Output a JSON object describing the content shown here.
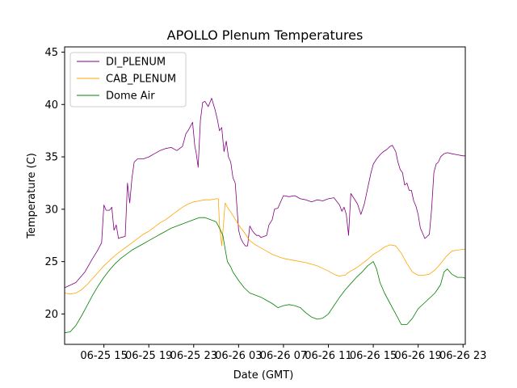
{
  "chart_data": {
    "type": "line",
    "title": "APOLLO Plenum Temperatures",
    "xlabel": "Date (GMT)",
    "ylabel": "Temperature (C)",
    "xlim": [
      11.5,
      47.2
    ],
    "ylim": [
      17.1,
      45.5
    ],
    "x_ticks": [
      {
        "value": 15,
        "label": "06-25 15"
      },
      {
        "value": 19,
        "label": "06-25 19"
      },
      {
        "value": 23,
        "label": "06-25 23"
      },
      {
        "value": 27,
        "label": "06-26 03"
      },
      {
        "value": 31,
        "label": "06-26 07"
      },
      {
        "value": 35,
        "label": "06-26 11"
      },
      {
        "value": 39,
        "label": "06-26 15"
      },
      {
        "value": 43,
        "label": "06-26 19"
      },
      {
        "value": 47,
        "label": "06-26 23"
      }
    ],
    "y_ticks": [
      {
        "value": 20,
        "label": "20"
      },
      {
        "value": 25,
        "label": "25"
      },
      {
        "value": 30,
        "label": "30"
      },
      {
        "value": 35,
        "label": "35"
      },
      {
        "value": 40,
        "label": "40"
      },
      {
        "value": 45,
        "label": "45"
      }
    ],
    "legend": "top-left",
    "series": [
      {
        "name": "DI_PLENUM",
        "color": "#800080",
        "x": [
          11.5,
          12.5,
          13.3,
          14.0,
          14.4,
          14.8,
          15.0,
          15.2,
          15.5,
          15.7,
          15.9,
          16.1,
          16.3,
          16.5,
          16.9,
          17.1,
          17.3,
          17.5,
          17.7,
          18.0,
          18.5,
          19.0,
          19.5,
          20.0,
          20.5,
          21.0,
          21.5,
          22.0,
          22.3,
          22.5,
          22.9,
          23.1,
          23.2,
          23.4,
          23.6,
          23.8,
          24.0,
          24.3,
          24.6,
          24.9,
          25.1,
          25.3,
          25.5,
          25.7,
          25.9,
          26.1,
          26.3,
          26.5,
          26.7,
          27.0,
          27.2,
          27.4,
          27.6,
          27.8,
          28.0,
          28.2,
          28.4,
          28.6,
          28.8,
          29.0,
          29.5,
          29.7,
          30.0,
          30.2,
          30.5,
          30.7,
          31.0,
          31.5,
          32.0,
          32.5,
          33.0,
          33.5,
          34.0,
          34.5,
          35.0,
          35.5,
          36.0,
          36.2,
          36.4,
          36.6,
          36.8,
          37.0,
          37.3,
          37.6,
          37.9,
          38.2,
          38.5,
          38.8,
          39.0,
          39.3,
          39.6,
          39.9,
          40.2,
          40.5,
          40.7,
          41.0,
          41.2,
          41.4,
          41.6,
          41.8,
          42.0,
          42.2,
          42.4,
          42.6,
          42.8,
          43.0,
          43.2,
          43.4,
          43.6,
          43.8,
          44.0,
          44.2,
          44.4,
          44.6,
          44.8,
          45.0,
          45.3,
          45.6,
          46.0,
          46.5,
          47.0,
          47.2
        ],
        "values": [
          22.5,
          23.0,
          24.0,
          25.3,
          26.0,
          26.8,
          30.4,
          29.9,
          29.9,
          30.2,
          28.0,
          28.5,
          27.2,
          27.3,
          27.4,
          32.5,
          30.6,
          33.0,
          34.5,
          34.8,
          34.8,
          35.0,
          35.3,
          35.6,
          35.8,
          35.9,
          35.6,
          36.0,
          37.2,
          37.5,
          38.3,
          36.0,
          35.5,
          34.0,
          38.5,
          40.2,
          40.3,
          39.8,
          40.6,
          39.5,
          38.6,
          37.5,
          37.8,
          35.5,
          36.5,
          35.0,
          34.5,
          33.0,
          32.5,
          28.0,
          27.2,
          26.8,
          26.5,
          26.5,
          28.4,
          28.0,
          27.7,
          27.5,
          27.5,
          27.3,
          27.5,
          28.5,
          29.0,
          30.0,
          30.1,
          30.6,
          31.3,
          31.2,
          31.3,
          31.0,
          30.9,
          30.7,
          30.9,
          30.8,
          31.0,
          31.1,
          30.4,
          29.8,
          30.2,
          29.5,
          27.5,
          31.5,
          31.0,
          30.5,
          29.5,
          30.5,
          32.0,
          33.5,
          34.3,
          34.8,
          35.2,
          35.5,
          35.7,
          36.0,
          36.1,
          35.5,
          34.5,
          33.8,
          33.5,
          32.3,
          32.5,
          31.8,
          31.8,
          30.8,
          30.3,
          29.5,
          28.2,
          27.7,
          27.2,
          27.4,
          27.6,
          30.0,
          33.5,
          34.3,
          34.5,
          35.0,
          35.3,
          35.4,
          35.3,
          35.2,
          35.1,
          35.1
        ],
        "linewidth": 0.8
      },
      {
        "name": "CAB_PLENUM",
        "color": "#FFA500",
        "x": [
          11.5,
          12.0,
          12.5,
          13.0,
          13.5,
          14.0,
          14.5,
          15.0,
          15.5,
          16.0,
          16.5,
          17.0,
          17.5,
          18.0,
          18.5,
          19.0,
          19.5,
          20.0,
          20.5,
          21.0,
          21.5,
          22.0,
          22.5,
          23.0,
          23.5,
          24.0,
          24.5,
          25.0,
          25.2,
          25.3,
          25.5,
          25.8,
          26.0,
          26.5,
          27.0,
          27.5,
          28.0,
          28.5,
          29.0,
          29.5,
          30.0,
          30.5,
          31.0,
          32.0,
          33.0,
          34.0,
          35.0,
          35.5,
          36.0,
          36.3,
          36.5,
          36.7,
          37.0,
          37.5,
          38.0,
          38.5,
          39.0,
          39.5,
          40.0,
          40.5,
          41.0,
          41.5,
          42.0,
          42.5,
          43.0,
          43.5,
          44.0,
          44.5,
          45.0,
          45.5,
          46.0,
          46.5,
          47.2
        ],
        "values": [
          22.0,
          21.9,
          22.0,
          22.3,
          22.8,
          23.4,
          24.0,
          24.6,
          25.1,
          25.6,
          26.0,
          26.4,
          26.8,
          27.2,
          27.6,
          27.9,
          28.3,
          28.7,
          29.0,
          29.4,
          29.8,
          30.2,
          30.5,
          30.7,
          30.8,
          30.9,
          30.9,
          31.0,
          31.0,
          28.5,
          26.5,
          30.6,
          30.2,
          29.4,
          28.5,
          27.8,
          27.0,
          26.6,
          26.3,
          26.0,
          25.7,
          25.5,
          25.3,
          25.1,
          24.9,
          24.6,
          24.1,
          23.8,
          23.6,
          23.7,
          23.7,
          23.9,
          24.1,
          24.4,
          24.8,
          25.2,
          25.7,
          26.0,
          26.4,
          26.6,
          26.5,
          25.8,
          24.8,
          24.0,
          23.7,
          23.7,
          23.8,
          24.2,
          24.8,
          25.5,
          26.0,
          26.1,
          26.2
        ],
        "linewidth": 0.8
      },
      {
        "name": "Dome Air",
        "color": "#008000",
        "x": [
          11.5,
          12.0,
          12.5,
          13.0,
          13.5,
          14.0,
          14.5,
          15.0,
          15.5,
          16.0,
          16.5,
          17.0,
          17.5,
          18.0,
          18.5,
          19.0,
          19.5,
          20.0,
          20.5,
          21.0,
          21.5,
          22.0,
          22.5,
          23.0,
          23.5,
          24.0,
          24.5,
          25.0,
          25.3,
          25.6,
          25.8,
          26.0,
          26.3,
          26.5,
          27.0,
          27.5,
          28.0,
          28.5,
          29.0,
          29.5,
          30.0,
          30.5,
          31.0,
          31.5,
          32.0,
          32.5,
          33.0,
          33.5,
          34.0,
          34.5,
          35.0,
          35.5,
          36.0,
          36.5,
          37.0,
          37.5,
          38.0,
          38.5,
          39.0,
          39.3,
          39.6,
          40.0,
          40.5,
          41.0,
          41.5,
          42.0,
          42.5,
          43.0,
          43.5,
          44.0,
          44.5,
          45.0,
          45.3,
          45.6,
          46.0,
          46.5,
          47.0,
          47.2
        ],
        "values": [
          18.2,
          18.3,
          18.9,
          19.8,
          20.8,
          21.8,
          22.7,
          23.5,
          24.2,
          24.8,
          25.3,
          25.7,
          26.1,
          26.4,
          26.7,
          27.0,
          27.3,
          27.6,
          27.9,
          28.2,
          28.4,
          28.6,
          28.8,
          29.0,
          29.2,
          29.2,
          29.0,
          28.8,
          28.2,
          27.5,
          26.2,
          25.0,
          24.5,
          24.0,
          23.2,
          22.5,
          22.0,
          21.8,
          21.6,
          21.3,
          21.0,
          20.6,
          20.8,
          20.9,
          20.8,
          20.6,
          20.1,
          19.7,
          19.5,
          19.6,
          20.0,
          20.8,
          21.6,
          22.3,
          22.9,
          23.5,
          24.0,
          24.6,
          25.0,
          24.3,
          23.0,
          22.0,
          21.0,
          20.0,
          19.0,
          19.0,
          19.6,
          20.5,
          21.0,
          21.5,
          22.0,
          22.8,
          24.0,
          24.3,
          23.8,
          23.5,
          23.5,
          23.4
        ],
        "linewidth": 0.8
      }
    ]
  }
}
